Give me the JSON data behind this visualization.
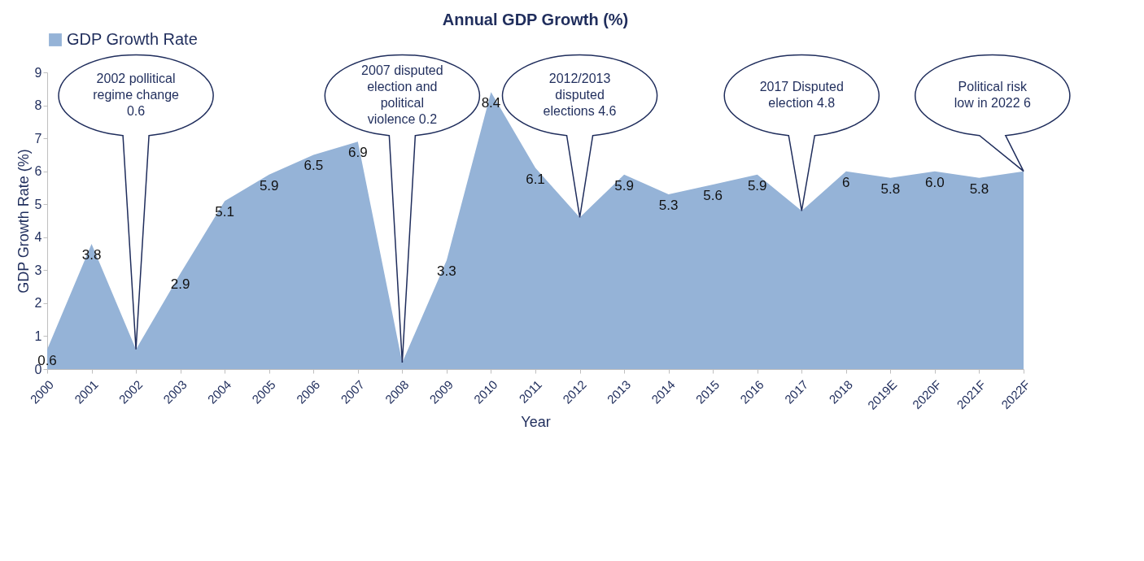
{
  "chart_data": {
    "type": "area",
    "title": "Annual GDP Growth (%)",
    "xlabel": "Year",
    "ylabel": "GDP Growth Rate (%)",
    "categories": [
      "2000",
      "2001",
      "2002",
      "2003",
      "2004",
      "2005",
      "2006",
      "2007",
      "2008",
      "2009",
      "2010",
      "2011",
      "2012",
      "2013",
      "2014",
      "2015",
      "2016",
      "2017",
      "2018",
      "2019E",
      "2020F",
      "2021F",
      "2022F"
    ],
    "series": [
      {
        "name": "GDP Growth Rate",
        "color": "#95b3d7",
        "values": [
          0.6,
          3.8,
          0.6,
          2.9,
          5.1,
          5.9,
          6.5,
          6.9,
          0.2,
          3.3,
          8.4,
          6.1,
          4.6,
          5.9,
          5.3,
          5.6,
          5.9,
          4.8,
          6,
          5.8,
          6.0,
          5.8,
          6
        ],
        "value_labels": [
          "0.6",
          "3.8",
          null,
          "2.9",
          "5.1",
          "5.9",
          "6.5",
          "6.9",
          null,
          "3.3",
          "8.4",
          "6.1",
          null,
          "5.9",
          "5.3",
          "5.6",
          "5.9",
          null,
          "6",
          "5.8",
          "6.0",
          "5.8",
          null
        ]
      }
    ],
    "ylim": [
      0,
      9
    ],
    "yticks": [
      0,
      1,
      2,
      3,
      4,
      5,
      6,
      7,
      8,
      9
    ],
    "grid": false,
    "legend": "top",
    "annotations": [
      "2002 pollitical regime change 0.6",
      "2007 disputed election and political violence 0.2",
      "2012/2013 disputed elections 4.6",
      "2017 Disputed election 4.8",
      "Political risk low in 2022 6"
    ]
  }
}
